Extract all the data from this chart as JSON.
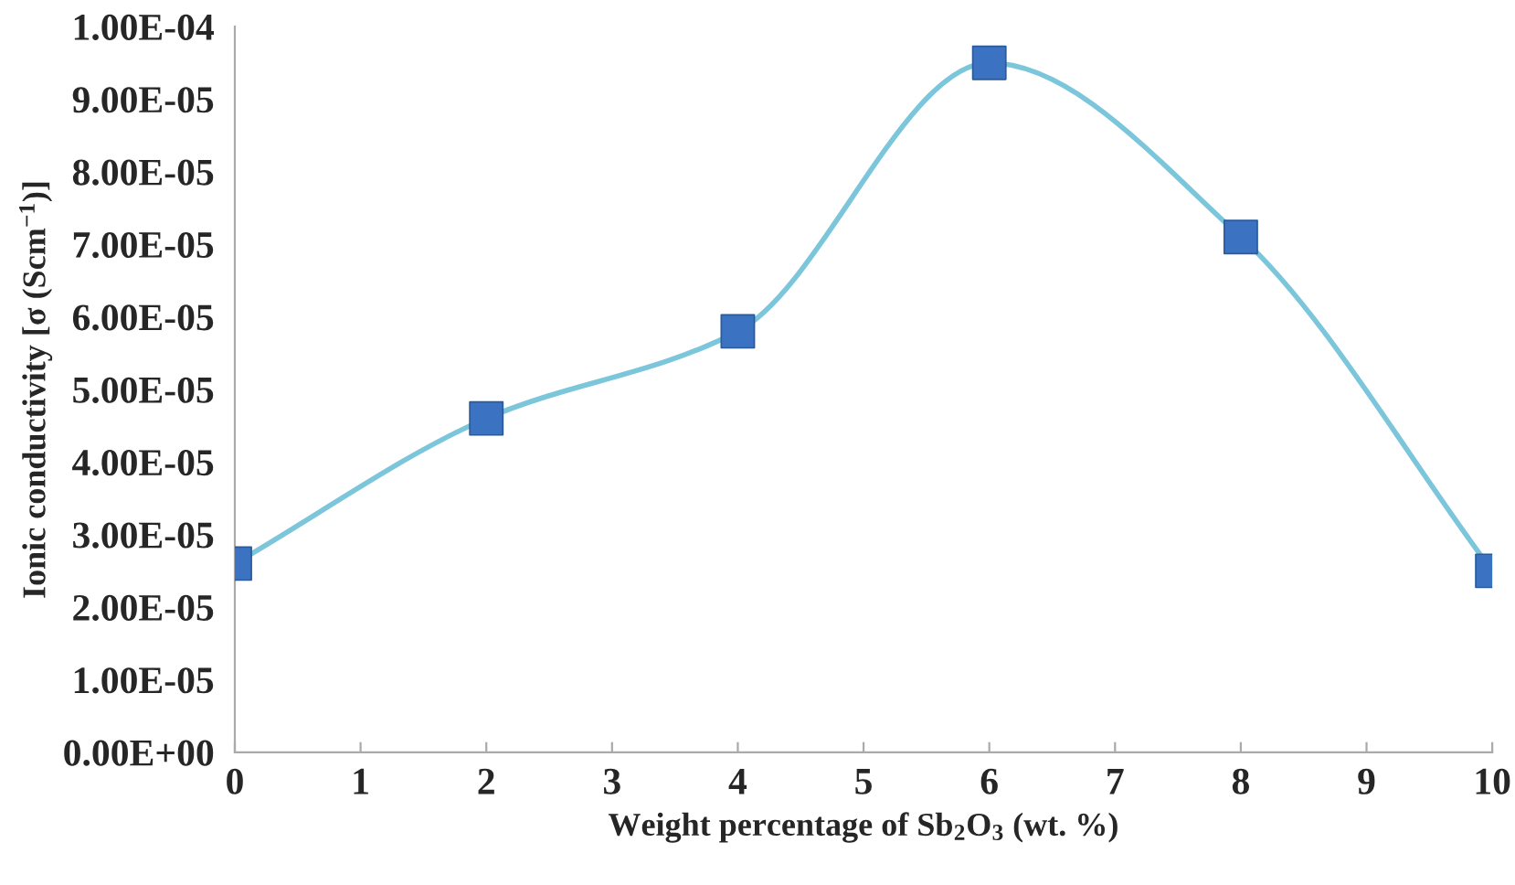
{
  "chart_data": {
    "type": "line",
    "xlabel": "Weight percentage of Sb$_{2}$O$_{3}$ (wt. %)",
    "ylabel": "Ionic conductivity [σ (Scm$^{−1}$)]",
    "x": [
      0,
      2,
      4,
      6,
      8,
      10
    ],
    "series": [
      {
        "color": "#7cc6dc",
        "colors": [
          "#3b73c2",
          "#3b73c2",
          "#3b73c2",
          "#3b73c2",
          "#3b73c2",
          "#3b73c2"
        ],
        "values": [
          2.6e-05,
          4.6e-05,
          5.8e-05,
          9.5e-05,
          7.1e-05,
          2.5e-05
        ]
      }
    ],
    "marker": "square",
    "line_style": "solid",
    "grid": false,
    "legend": false,
    "xlim": [
      0,
      10
    ],
    "xticks": [
      0,
      1,
      2,
      3,
      4,
      5,
      6,
      7,
      8,
      9,
      10
    ],
    "ylim": [
      0,
      0.0001
    ],
    "yticks": [
      {
        "value": 0,
        "label": "0.00E+00"
      },
      {
        "value": 1e-05,
        "label": "1.00E-05"
      },
      {
        "value": 2e-05,
        "label": "2.00E-05"
      },
      {
        "value": 3e-05,
        "label": "3.00E-05"
      },
      {
        "value": 4e-05,
        "label": "4.00E-05"
      },
      {
        "value": 5e-05,
        "label": "5.00E-05"
      },
      {
        "value": 6e-05,
        "label": "6.00E-05"
      },
      {
        "value": 7e-05,
        "label": "7.00E-05"
      },
      {
        "value": 8e-05,
        "label": "8.00E-05"
      },
      {
        "value": 9e-05,
        "label": "9.00E-05"
      },
      {
        "value": 0.0001,
        "label": "1.00E-04"
      }
    ]
  }
}
